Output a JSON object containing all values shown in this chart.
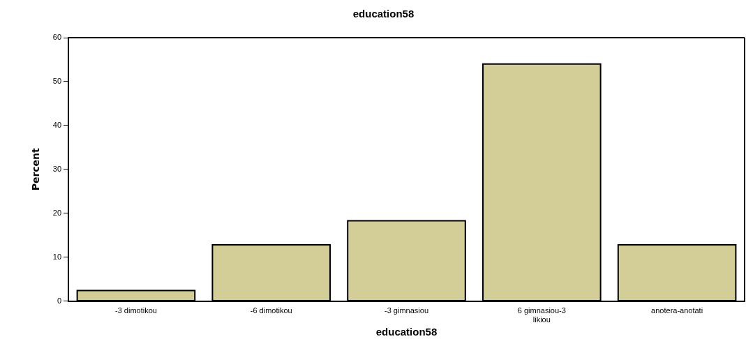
{
  "chart_data": {
    "type": "bar",
    "title": "education58",
    "xlabel": "education58",
    "ylabel": "Percent",
    "categories": [
      "-3 dimotikou",
      "-6 dimotikou",
      "-3 gimnasiou",
      "6 gimnasiou-3 likiou",
      "anotera-anotati"
    ],
    "values": [
      2.4,
      12.8,
      18.3,
      54.0,
      12.8
    ],
    "color": "#d3ce97",
    "ylim": [
      0,
      60
    ],
    "yticks": [
      0,
      10,
      20,
      30,
      40,
      50,
      60
    ],
    "grid": false,
    "legend": false
  }
}
